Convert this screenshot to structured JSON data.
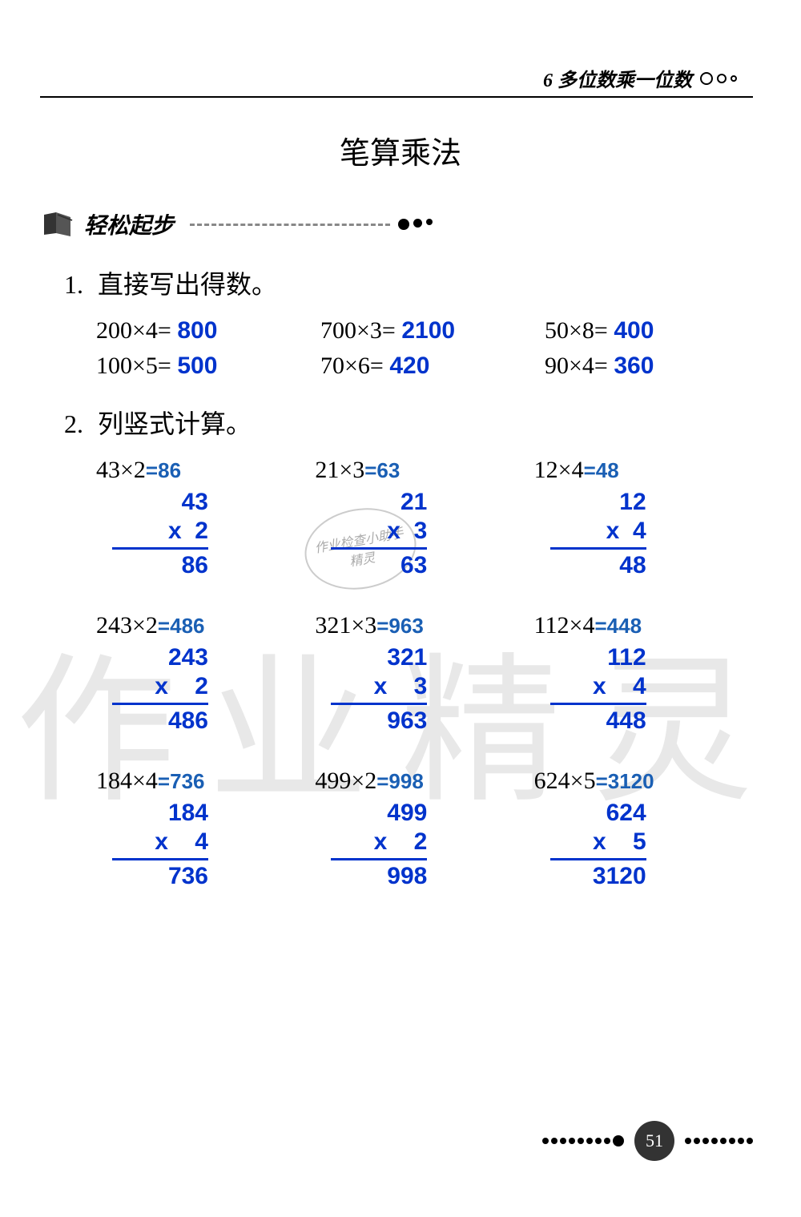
{
  "header": {
    "chapter": "6  多位数乘一位数"
  },
  "title": "笔算乘法",
  "section": "轻松起步",
  "q1": {
    "label": "1.",
    "text": "直接写出得数。",
    "r1": [
      {
        "expr": "200×4=",
        "ans": "800"
      },
      {
        "expr": "700×3=",
        "ans": "2100"
      },
      {
        "expr": "50×8=",
        "ans": "400"
      }
    ],
    "r2": [
      {
        "expr": "100×5=",
        "ans": "500"
      },
      {
        "expr": "70×6=",
        "ans": "420"
      },
      {
        "expr": "90×4=",
        "ans": "360"
      }
    ]
  },
  "q2": {
    "label": "2.",
    "text": "列竖式计算。",
    "rows": [
      [
        {
          "expr": "43×2",
          "eq": "=86",
          "top": "43",
          "mult": "x  2",
          "res": "86"
        },
        {
          "expr": "21×3",
          "eq": "=63",
          "top": "21",
          "mult": "x  3",
          "res": "63"
        },
        {
          "expr": "12×4",
          "eq": "=48",
          "top": "12",
          "mult": "x  4",
          "res": "48"
        }
      ],
      [
        {
          "expr": "243×2",
          "eq": "=486",
          "top": "243",
          "mult": "x    2",
          "res": "486"
        },
        {
          "expr": "321×3",
          "eq": "=963",
          "top": "321",
          "mult": "x    3",
          "res": "963"
        },
        {
          "expr": "112×4",
          "eq": "=448",
          "top": "112",
          "mult": "x    4",
          "res": "448"
        }
      ],
      [
        {
          "expr": "184×4",
          "eq": "=736",
          "top": "184",
          "mult": "x    4",
          "res": "736"
        },
        {
          "expr": "499×2",
          "eq": "=998",
          "top": "499",
          "mult": "x    2",
          "res": "998"
        },
        {
          "expr": "624×5",
          "eq": "=3120",
          "top": "624",
          "mult": "x    5",
          "res": "3120"
        }
      ]
    ]
  },
  "stamp": {
    "line1": "作业检查小助手",
    "line2": "精灵"
  },
  "watermark": "作业精灵",
  "pageNumber": "51",
  "colors": {
    "answer": "#0033cc",
    "text": "#000000",
    "watermark": "#e8e8e8"
  }
}
